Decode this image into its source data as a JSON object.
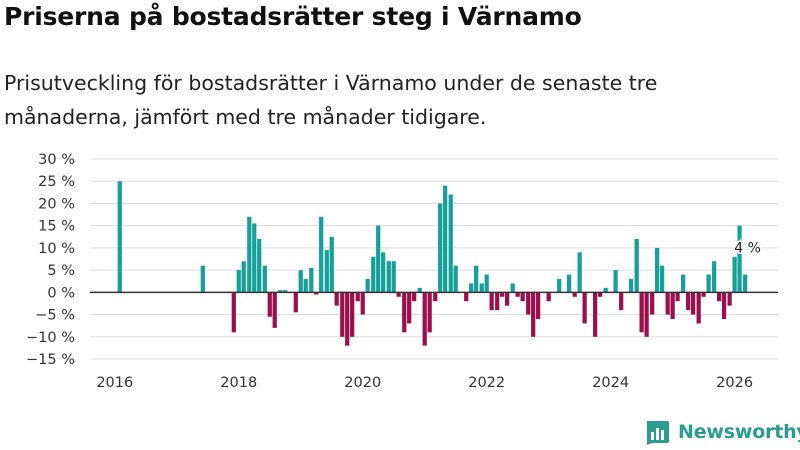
{
  "title": "Priserna på bostadsrätter steg i Värnamo",
  "subtitle": "Prisutveckling för bostadsrätter i Värnamo under de senaste tre månaderna, jämfört med tre månader tidigare.",
  "brand": {
    "name": "Newsworthy",
    "color": "#2a9d8f"
  },
  "colors": {
    "positive": "#16a09a",
    "negative": "#9c0f4b",
    "grid": "#dddddd",
    "zero_line": "#333333"
  },
  "chart_data": {
    "type": "bar",
    "title": "Priserna på bostadsrätter steg i Värnamo",
    "xlabel": "",
    "ylabel": "",
    "ylim": [
      -15,
      30
    ],
    "yticks": [
      -15,
      -10,
      -5,
      0,
      5,
      10,
      15,
      20,
      25,
      30
    ],
    "ytick_labels": [
      "−15 %",
      "−10 %",
      "−5 %",
      "0 %",
      "5 %",
      "10 %",
      "15 %",
      "20 %",
      "25 %",
      "30 %"
    ],
    "xlim": [
      2015.6,
      2026.7
    ],
    "xticks": [
      2016,
      2018,
      2020,
      2022,
      2024,
      2026
    ],
    "xtick_labels": [
      "2016",
      "2018",
      "2020",
      "2022",
      "2024",
      "2026"
    ],
    "annotation": {
      "x": 2026.08,
      "y": 15,
      "text": "4 %"
    },
    "x": [
      2016.08,
      2017.42,
      2017.92,
      2018.0,
      2018.08,
      2018.17,
      2018.25,
      2018.33,
      2018.42,
      2018.5,
      2018.58,
      2018.67,
      2018.75,
      2018.83,
      2018.92,
      2019.0,
      2019.08,
      2019.17,
      2019.25,
      2019.33,
      2019.42,
      2019.5,
      2019.58,
      2019.67,
      2019.75,
      2019.83,
      2019.92,
      2020.0,
      2020.08,
      2020.17,
      2020.25,
      2020.33,
      2020.42,
      2020.5,
      2020.58,
      2020.67,
      2020.75,
      2020.83,
      2020.92,
      2021.0,
      2021.08,
      2021.17,
      2021.25,
      2021.33,
      2021.42,
      2021.5,
      2021.58,
      2021.67,
      2021.75,
      2021.83,
      2021.92,
      2022.0,
      2022.08,
      2022.17,
      2022.25,
      2022.33,
      2022.42,
      2022.5,
      2022.58,
      2022.67,
      2022.75,
      2022.83,
      2022.92,
      2023.0,
      2023.17,
      2023.33,
      2023.42,
      2023.5,
      2023.58,
      2023.75,
      2023.83,
      2023.92,
      2024.08,
      2024.17,
      2024.33,
      2024.42,
      2024.5,
      2024.58,
      2024.67,
      2024.75,
      2024.83,
      2024.92,
      2025.0,
      2025.08,
      2025.17,
      2025.25,
      2025.33,
      2025.42,
      2025.5,
      2025.58,
      2025.67,
      2025.75,
      2025.83,
      2025.92,
      2026.0,
      2026.08,
      2026.17
    ],
    "values": [
      25,
      6,
      -9,
      5,
      7,
      17,
      15.5,
      12,
      6,
      -5.5,
      -8,
      0.5,
      0.5,
      0,
      -4.5,
      5,
      3,
      5.5,
      -0.5,
      17,
      9.5,
      12.5,
      -3,
      -10,
      -12,
      -10,
      -2,
      -5,
      3,
      8,
      15,
      9,
      7,
      7,
      -1,
      -9,
      -7,
      -2,
      1,
      -12,
      -9,
      -2,
      20,
      24,
      22,
      6,
      0,
      -2,
      2,
      6,
      2,
      4,
      -4,
      -4,
      -1,
      -3,
      2,
      -1,
      -2,
      -5,
      -10,
      -6,
      0,
      -2,
      3,
      4,
      -1,
      9,
      -7,
      -10,
      -1,
      1,
      5,
      -4,
      3,
      12,
      -9,
      -10,
      -5,
      10,
      6,
      -5,
      -6,
      -2,
      4,
      -4,
      -5,
      -7,
      -1,
      4,
      7,
      -2,
      -6,
      -3,
      8,
      15,
      4
    ]
  }
}
